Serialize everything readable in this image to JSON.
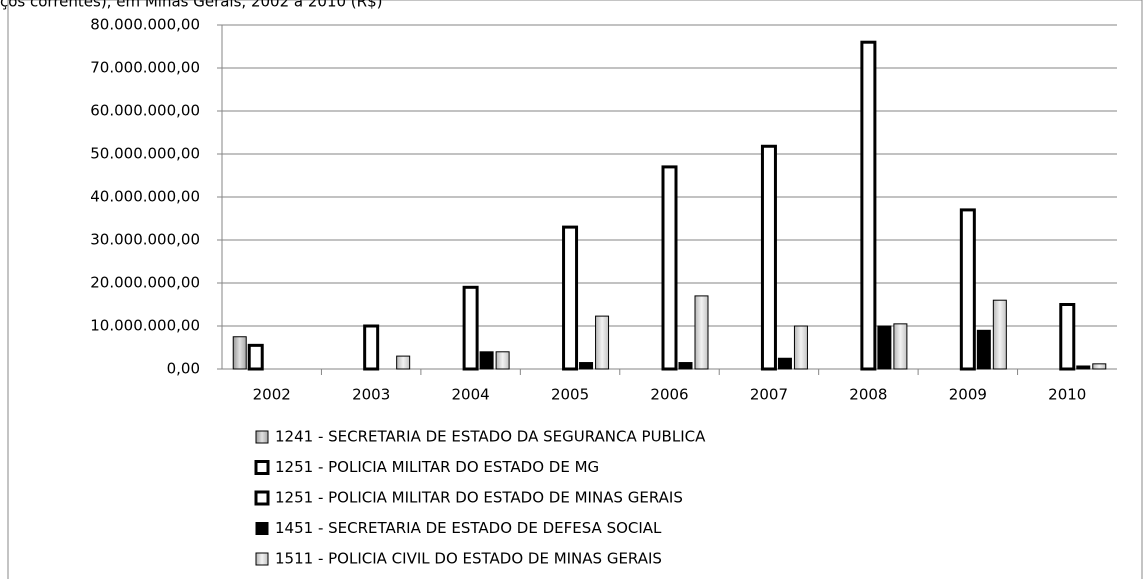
{
  "chart_data": {
    "type": "bar",
    "title": "ços correntes), em Minas Gerais, 2002 a 2010 (R$)",
    "categories": [
      "2002",
      "2003",
      "2004",
      "2005",
      "2006",
      "2007",
      "2008",
      "2009",
      "2010"
    ],
    "series": [
      {
        "name": "1241 - SECRETARIA DE ESTADO DA SEGURANCA PUBLICA",
        "color": "#c8c8c8",
        "values": [
          7500000,
          null,
          null,
          null,
          null,
          null,
          null,
          null,
          null
        ]
      },
      {
        "name": "1251 - POLICIA MILITAR DO ESTADO DE MG",
        "color": "#ffffff",
        "values": [
          5500000,
          null,
          null,
          null,
          null,
          null,
          null,
          null,
          null
        ]
      },
      {
        "name": "1251 - POLICIA MILITAR DO ESTADO DE MINAS GERAIS",
        "color": "#ffffff",
        "values": [
          null,
          10000000,
          19000000,
          33000000,
          47000000,
          51800000,
          76000000,
          37000000,
          15000000
        ]
      },
      {
        "name": "1451 - SECRETARIA DE ESTADO DE DEFESA SOCIAL",
        "color": "#000000",
        "values": [
          null,
          null,
          4000000,
          1500000,
          1500000,
          2500000,
          10000000,
          9000000,
          700000
        ]
      },
      {
        "name": "1511 - POLICIA CIVIL DO ESTADO DE MINAS GERAIS",
        "color": "#e6e6e6",
        "values": [
          null,
          3000000,
          4000000,
          12300000,
          17000000,
          10000000,
          10500000,
          16000000,
          1200000
        ]
      }
    ],
    "ylim": [
      0,
      80000000
    ],
    "yticks": [
      {
        "value": 0,
        "label": "0,00"
      },
      {
        "value": 10000000,
        "label": "10.000.000,00"
      },
      {
        "value": 20000000,
        "label": "20.000.000,00"
      },
      {
        "value": 30000000,
        "label": "30.000.000,00"
      },
      {
        "value": 40000000,
        "label": "40.000.000,00"
      },
      {
        "value": 50000000,
        "label": "50.000.000,00"
      },
      {
        "value": 60000000,
        "label": "60.000.000,00"
      },
      {
        "value": 70000000,
        "label": "70.000.000,00"
      },
      {
        "value": 80000000,
        "label": "80.000.000,00"
      }
    ],
    "grid": true,
    "legend": "bottom"
  }
}
